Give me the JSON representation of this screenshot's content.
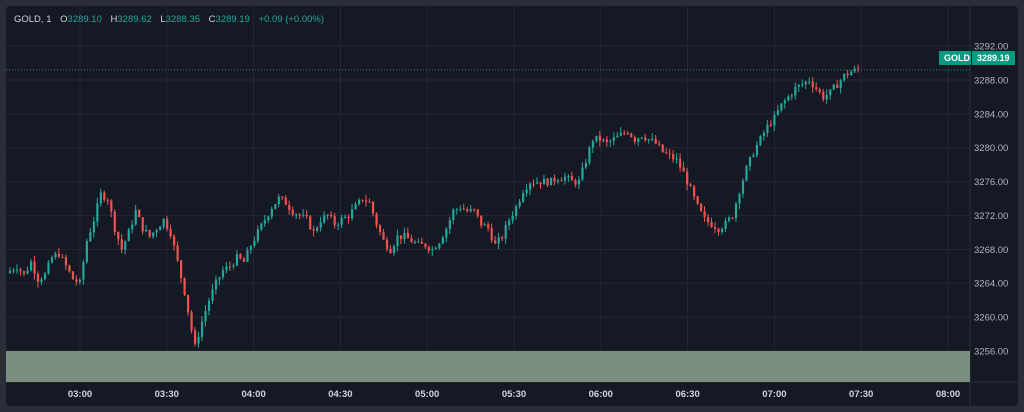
{
  "legend": {
    "symbol": "GOLD, 1",
    "open_key": "O",
    "open": "3289.10",
    "high_key": "H",
    "high": "3289.62",
    "low_key": "L",
    "low": "3288.35",
    "close_key": "C",
    "close": "3289.19",
    "change": "+0.09 (+0.00%)"
  },
  "price_badge": {
    "symbol": "GOLD",
    "price": "3289.19"
  },
  "colors": {
    "up": "#26a69a",
    "down": "#ef5350",
    "background": "#151924",
    "grid": "#232735",
    "volume_area": "#7b8f7e"
  },
  "chart_data": {
    "type": "candlestick",
    "title": "GOLD, 1",
    "y_ticks": [
      3256,
      3260,
      3264,
      3268,
      3272,
      3276,
      3280,
      3284,
      3288,
      3292
    ],
    "y_tick_labels": [
      "3256.00",
      "3260.00",
      "3264.00",
      "3268.00",
      "3272.00",
      "3276.00",
      "3280.00",
      "3284.00",
      "3288.00",
      "3292.00"
    ],
    "x_ticks": [
      "03:00",
      "03:30",
      "04:00",
      "04:30",
      "05:00",
      "05:30",
      "06:00",
      "06:30",
      "07:00",
      "07:30",
      "08:00"
    ],
    "ylim": [
      3252.5,
      3295
    ],
    "last_price": 3289.19,
    "close_path": [
      [
        0,
        3265.5
      ],
      [
        2,
        3266
      ],
      [
        4,
        3265
      ],
      [
        6,
        3266.5
      ],
      [
        8,
        3264.5
      ],
      [
        10,
        3265
      ],
      [
        12,
        3267
      ],
      [
        14,
        3267.5
      ],
      [
        16,
        3266
      ],
      [
        18,
        3264.5
      ],
      [
        20,
        3264
      ],
      [
        22,
        3269
      ],
      [
        24,
        3271.5
      ],
      [
        26,
        3274.5
      ],
      [
        28,
        3274
      ],
      [
        30,
        3270.5
      ],
      [
        32,
        3268
      ],
      [
        34,
        3270
      ],
      [
        36,
        3272.5
      ],
      [
        38,
        3270.5
      ],
      [
        40,
        3269.5
      ],
      [
        42,
        3270.5
      ],
      [
        44,
        3271.5
      ],
      [
        46,
        3270
      ],
      [
        48,
        3266.5
      ],
      [
        50,
        3263
      ],
      [
        52,
        3258.5
      ],
      [
        53,
        3256.5
      ],
      [
        55,
        3259.5
      ],
      [
        57,
        3262
      ],
      [
        59,
        3264
      ],
      [
        61,
        3265.5
      ],
      [
        63,
        3266
      ],
      [
        65,
        3267
      ],
      [
        67,
        3266.5
      ],
      [
        69,
        3268.5
      ],
      [
        71,
        3270
      ],
      [
        73,
        3271.5
      ],
      [
        75,
        3273
      ],
      [
        77,
        3274
      ],
      [
        79,
        3273.5
      ],
      [
        81,
        3272.5
      ],
      [
        83,
        3272
      ],
      [
        85,
        3271.5
      ],
      [
        87,
        3270
      ],
      [
        89,
        3271.5
      ],
      [
        91,
        3272
      ],
      [
        93,
        3271
      ],
      [
        95,
        3271.5
      ],
      [
        97,
        3272
      ],
      [
        99,
        3273
      ],
      [
        101,
        3274
      ],
      [
        103,
        3273.5
      ],
      [
        105,
        3271
      ],
      [
        107,
        3269
      ],
      [
        109,
        3268
      ],
      [
        111,
        3269.5
      ],
      [
        113,
        3269.5
      ],
      [
        115,
        3269
      ],
      [
        117,
        3268.5
      ],
      [
        119,
        3268.5
      ],
      [
        121,
        3268
      ],
      [
        123,
        3269
      ],
      [
        125,
        3270.5
      ],
      [
        127,
        3272.5
      ],
      [
        129,
        3273
      ],
      [
        131,
        3272.5
      ],
      [
        133,
        3272.5
      ],
      [
        135,
        3271
      ],
      [
        137,
        3270.5
      ],
      [
        139,
        3268.5
      ],
      [
        141,
        3269.5
      ],
      [
        143,
        3271.5
      ],
      [
        145,
        3273
      ],
      [
        147,
        3275
      ],
      [
        149,
        3276
      ],
      [
        151,
        3276
      ],
      [
        153,
        3276
      ],
      [
        155,
        3276
      ],
      [
        157,
        3276.5
      ],
      [
        159,
        3276.5
      ],
      [
        161,
        3276
      ],
      [
        163,
        3276
      ],
      [
        165,
        3278.5
      ],
      [
        167,
        3281
      ],
      [
        169,
        3281
      ],
      [
        171,
        3280.5
      ],
      [
        173,
        3281
      ],
      [
        175,
        3281.5
      ],
      [
        177,
        3282
      ],
      [
        179,
        3281
      ],
      [
        181,
        3281.5
      ],
      [
        183,
        3281
      ],
      [
        185,
        3280.5
      ],
      [
        187,
        3279.5
      ],
      [
        189,
        3279
      ],
      [
        191,
        3278.5
      ],
      [
        193,
        3277
      ],
      [
        195,
        3275
      ],
      [
        197,
        3273
      ],
      [
        199,
        3271.5
      ],
      [
        201,
        3271
      ],
      [
        203,
        3270.5
      ],
      [
        205,
        3271
      ],
      [
        207,
        3272
      ],
      [
        209,
        3275
      ],
      [
        211,
        3277.5
      ],
      [
        213,
        3279.5
      ],
      [
        215,
        3281
      ],
      [
        217,
        3282.5
      ],
      [
        219,
        3283.5
      ],
      [
        221,
        3285
      ],
      [
        223,
        3286
      ],
      [
        225,
        3287
      ],
      [
        227,
        3287.5
      ],
      [
        229,
        3288
      ],
      [
        231,
        3287
      ],
      [
        233,
        3286
      ],
      [
        235,
        3286.5
      ],
      [
        237,
        3287.5
      ],
      [
        239,
        3288.5
      ],
      [
        241,
        3289
      ],
      [
        243,
        3289.2
      ]
    ]
  }
}
